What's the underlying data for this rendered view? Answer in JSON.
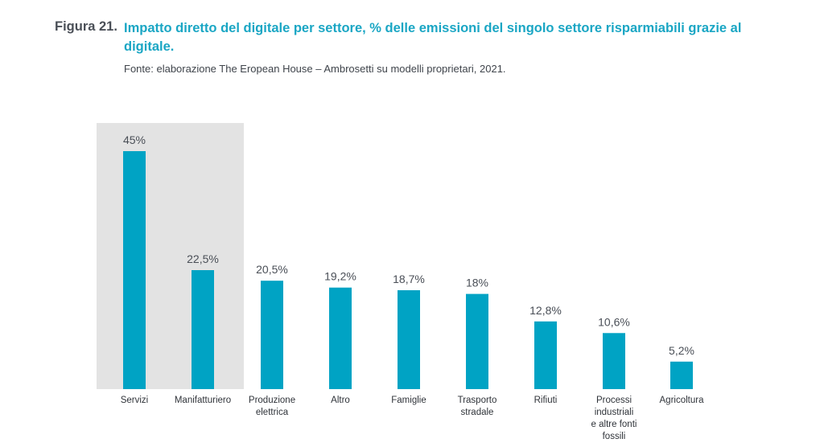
{
  "header": {
    "figure_label": "Figura 21.",
    "title": "Impatto diretto del digitale per settore, % delle emissioni del singolo settore risparmiabili grazie al digitale.",
    "source": "Fonte: elaborazione The Eropean House – Ambrosetti su modelli proprietari, 2021."
  },
  "chart_data": {
    "type": "bar",
    "categories": [
      "Servizi",
      "Manifatturiero",
      "Produzione elettrica",
      "Altro",
      "Famiglie",
      "Trasporto stradale",
      "Rifiuti",
      "Processi industriali e altre fonti fossili",
      "Agricoltura"
    ],
    "values": [
      45,
      22.5,
      20.5,
      19.2,
      18.7,
      18,
      12.8,
      10.6,
      5.2
    ],
    "value_labels": [
      "45%",
      "22,5%",
      "20,5%",
      "19,2%",
      "18,7%",
      "18%",
      "12,8%",
      "10,6%",
      "5,2%"
    ],
    "highlighted_categories": [
      "Servizi",
      "Manifatturiero"
    ],
    "ylim": [
      0,
      45
    ],
    "grid": false,
    "bar_color": "#00a3c4",
    "highlight_bg_color": "#e3e3e3"
  }
}
